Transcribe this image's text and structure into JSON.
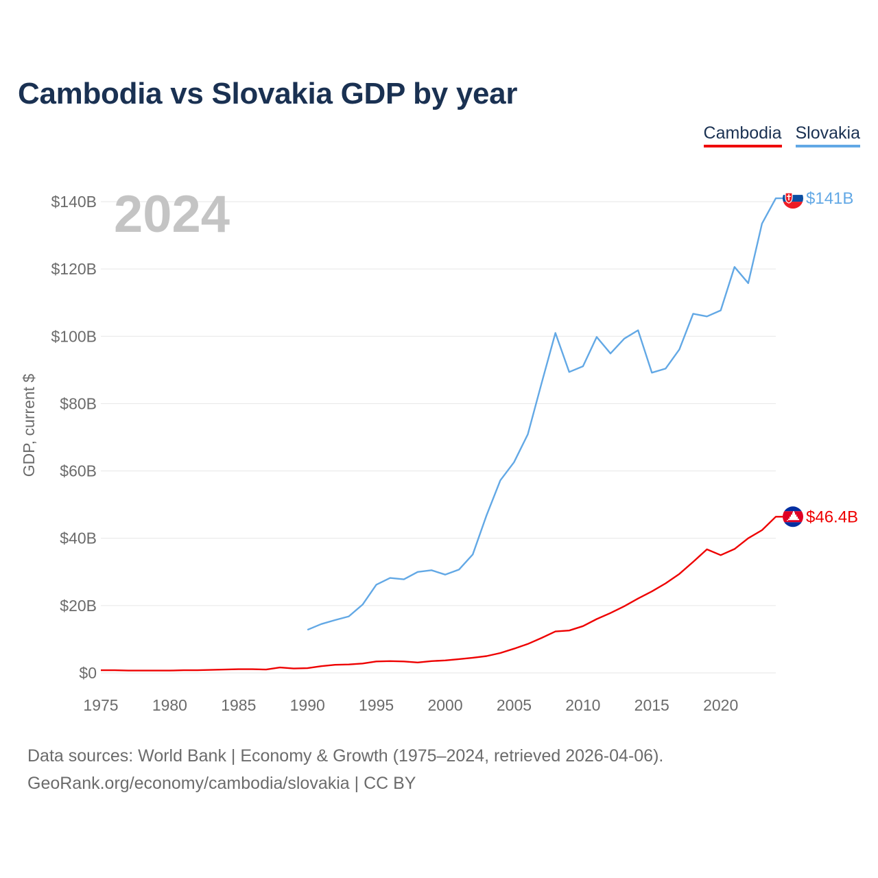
{
  "title": "Cambodia vs Slovakia GDP by year",
  "legend": [
    {
      "label": "Cambodia",
      "color": "#ee0000"
    },
    {
      "label": "Slovakia",
      "color": "#62a8e5"
    }
  ],
  "year_label": "2024",
  "footer": {
    "line1": "Data sources: World Bank | Economy & Growth (1975–2024, retrieved 2026-04-06).",
    "line2": "GeoRank.org/economy/cambodia/slovakia | CC BY"
  },
  "chart_data": {
    "type": "line",
    "title": "Cambodia vs Slovakia GDP by year",
    "xlabel": "",
    "ylabel": "GDP, current $",
    "xlim": [
      1975,
      2024
    ],
    "ylim": [
      0,
      140
    ],
    "y_unit": "billion US$",
    "yticks": [
      0,
      20,
      40,
      60,
      80,
      100,
      120,
      140
    ],
    "ytick_labels": [
      "$0",
      "$20B",
      "$40B",
      "$60B",
      "$80B",
      "$100B",
      "$120B",
      "$140B"
    ],
    "xticks": [
      1975,
      1980,
      1985,
      1990,
      1995,
      2000,
      2005,
      2010,
      2015,
      2020
    ],
    "xtick_labels": [
      "1975",
      "1980",
      "1985",
      "1990",
      "1995",
      "2000",
      "2005",
      "2010",
      "2015",
      "2020"
    ],
    "grid": true,
    "legend_position": "top-right",
    "series": [
      {
        "name": "Cambodia",
        "color": "#ee0000",
        "end_label": "$46.4B",
        "x": [
          1975,
          1976,
          1977,
          1978,
          1979,
          1980,
          1981,
          1982,
          1983,
          1984,
          1985,
          1986,
          1987,
          1988,
          1989,
          1990,
          1991,
          1992,
          1993,
          1994,
          1995,
          1996,
          1997,
          1998,
          1999,
          2000,
          2001,
          2002,
          2003,
          2004,
          2005,
          2006,
          2007,
          2008,
          2009,
          2010,
          2011,
          2012,
          2013,
          2014,
          2015,
          2016,
          2017,
          2018,
          2019,
          2020,
          2021,
          2022,
          2023,
          2024
        ],
        "values": [
          0.8,
          0.8,
          0.7,
          0.7,
          0.7,
          0.7,
          0.8,
          0.8,
          0.9,
          1.0,
          1.1,
          1.1,
          1.0,
          1.6,
          1.3,
          1.4,
          2.0,
          2.4,
          2.5,
          2.8,
          3.4,
          3.5,
          3.4,
          3.1,
          3.5,
          3.7,
          4.1,
          4.5,
          5.0,
          5.9,
          7.2,
          8.6,
          10.4,
          12.3,
          12.6,
          13.9,
          16.0,
          17.8,
          19.8,
          22.1,
          24.2,
          26.6,
          29.4,
          33.0,
          36.7,
          35.0,
          36.8,
          40.0,
          42.4,
          46.4
        ]
      },
      {
        "name": "Slovakia",
        "color": "#62a8e5",
        "end_label": "$141B",
        "x": [
          1990,
          1991,
          1992,
          1993,
          1994,
          1995,
          1996,
          1997,
          1998,
          1999,
          2000,
          2001,
          2002,
          2003,
          2004,
          2005,
          2006,
          2007,
          2008,
          2009,
          2010,
          2011,
          2012,
          2013,
          2014,
          2015,
          2016,
          2017,
          2018,
          2019,
          2020,
          2021,
          2022,
          2023,
          2024
        ],
        "values": [
          12.8,
          14.5,
          15.7,
          16.8,
          20.3,
          26.2,
          28.2,
          27.8,
          30.0,
          30.5,
          29.2,
          30.7,
          35.2,
          46.8,
          57.2,
          62.6,
          70.9,
          86.1,
          101.0,
          89.4,
          91.1,
          99.8,
          94.9,
          99.3,
          101.8,
          89.2,
          90.4,
          96.1,
          106.7,
          105.9,
          107.7,
          120.6,
          115.8,
          133.5,
          141.0
        ]
      }
    ]
  }
}
